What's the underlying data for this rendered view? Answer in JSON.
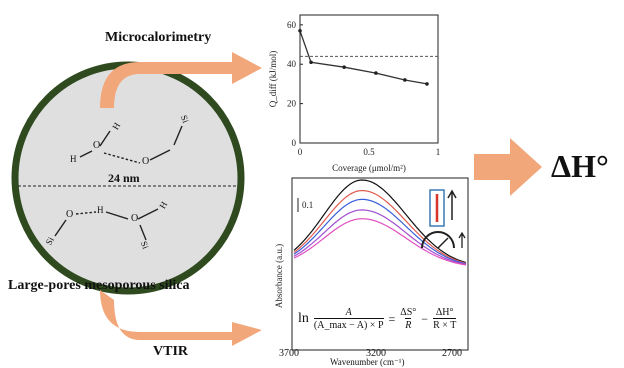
{
  "labels": {
    "microcalorimetry": "Microcalorimetry",
    "vtir": "VTIR",
    "large_pores": "Large-pores mesoporous silica",
    "pore_size": "24 nm",
    "delta_h": "ΔH°"
  },
  "molecule": {
    "atoms_upper": [
      "H",
      "O",
      "H",
      "O",
      "Si"
    ],
    "atoms_lower": [
      "O",
      "H",
      "O",
      "H",
      "Si",
      "Si"
    ]
  },
  "chart_data": [
    {
      "type": "line",
      "x": [
        0,
        0.08,
        0.32,
        0.55,
        0.76,
        0.92
      ],
      "values": [
        57,
        41,
        38.5,
        35.5,
        32,
        30
      ],
      "x_ticks": [
        "0",
        "0.5",
        "1"
      ],
      "y_ticks": [
        "0",
        "20",
        "40",
        "60"
      ],
      "xlabel": "Coverage (μmol/m²)",
      "ylabel": "Q_diff (kJ/mol)",
      "xlim": [
        0,
        1
      ],
      "ylim": [
        0,
        65
      ],
      "reference_line": 44,
      "marker": "dot",
      "grid": false
    },
    {
      "type": "line",
      "x_ticks": [
        "3700",
        "3200",
        "2700"
      ],
      "xlabel": "Wavenumber (cm⁻¹)",
      "ylabel": "Absorbance (a.u.)",
      "scale_label": "0.1",
      "x_reversed": true,
      "series": [
        {
          "color": "#111111",
          "peak": 1.0
        },
        {
          "color": "#e05a4e",
          "peak": 0.88
        },
        {
          "color": "#3b5fd8",
          "peak": 0.78
        },
        {
          "color": "#a24fd0",
          "peak": 0.66
        },
        {
          "color": "#e04fc0",
          "peak": 0.56
        }
      ],
      "equation": {
        "ln": "ln",
        "num1": "A",
        "den1": "(A_max − A) × P",
        "eq": "=",
        "num2": "ΔS°",
        "den2": "R",
        "minus": "−",
        "num3": "ΔH°",
        "den3": "R × T"
      }
    }
  ],
  "colors": {
    "circle_border": "#2f4a1f",
    "circle_fill": "#dfdfdf",
    "arrow": "#f2a77b",
    "inset_red": "#d9352a",
    "inset_border": "#3b7ab8"
  },
  "icons": [
    "thermometer-icon",
    "up-arrow-icon",
    "speedometer-icon"
  ]
}
